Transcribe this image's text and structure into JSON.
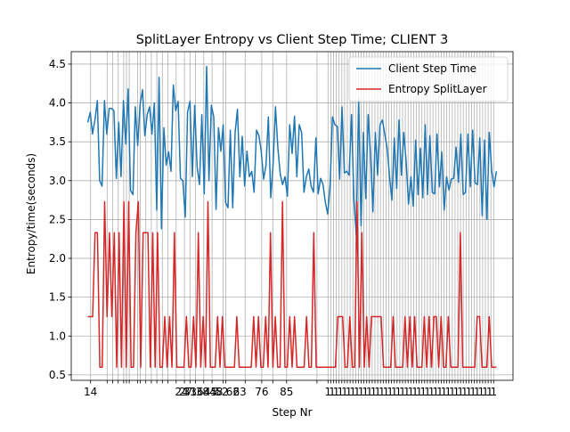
{
  "chart_data": {
    "type": "line",
    "title": "SplitLayer Entropy vs Client Step Time; CLIENT 3",
    "xlabel": "Step Nr",
    "ylabel": "Entropy/time(seconds)",
    "xlim": [
      7,
      167
    ],
    "ylim": [
      0.43,
      4.66
    ],
    "yticks": [
      0.5,
      1.0,
      1.5,
      2.0,
      2.5,
      3.0,
      3.5,
      4.0,
      4.5
    ],
    "ytick_labels": [
      "0.5",
      "1.0",
      "1.5",
      "2.0",
      "2.5",
      "3.0",
      "3.5",
      "4.0",
      "4.5"
    ],
    "grid": true,
    "legend_position": "top-right",
    "xtick_labels_visible": [
      {
        "x": 14,
        "label": "14"
      },
      {
        "x": 47,
        "label": "24"
      },
      {
        "x": 48.5,
        "label": "27"
      },
      {
        "x": 50,
        "label": "31"
      },
      {
        "x": 52.5,
        "label": "36"
      },
      {
        "x": 54.5,
        "label": "38"
      },
      {
        "x": 57.5,
        "label": "45"
      },
      {
        "x": 59.5,
        "label": "48"
      },
      {
        "x": 61.5,
        "label": "52"
      },
      {
        "x": 65.5,
        "label": "62"
      },
      {
        "x": 68,
        "label": "63"
      },
      {
        "x": 76,
        "label": "76"
      },
      {
        "x": 85,
        "label": "85"
      }
    ],
    "xtick_positions": [
      14,
      20,
      22,
      24,
      26,
      27,
      28,
      31,
      32,
      34,
      36,
      38,
      40,
      42,
      45,
      48,
      50,
      52,
      55,
      58,
      62,
      63,
      70,
      76,
      80,
      85,
      96,
      100,
      101,
      102,
      103,
      104,
      105,
      106,
      107,
      108,
      109,
      110,
      111,
      112,
      113,
      114,
      115,
      116,
      117,
      118,
      119,
      120,
      121,
      122,
      123,
      124,
      125,
      126,
      127,
      128,
      129,
      130,
      131,
      132,
      133,
      134,
      135,
      136,
      137,
      138,
      139,
      140,
      141,
      142,
      143,
      144,
      145,
      146,
      147,
      148,
      149,
      150,
      151,
      152,
      153,
      154,
      155,
      156,
      157,
      158,
      159,
      160
    ],
    "series": [
      {
        "name": "Client Step Time",
        "color": "#1f77b4",
        "values": [
          3.75,
          3.88,
          3.6,
          3.78,
          4.03,
          3.0,
          2.93,
          4.03,
          3.6,
          3.93,
          3.93,
          3.9,
          3.03,
          3.75,
          3.05,
          4.03,
          3.47,
          4.18,
          2.87,
          2.82,
          3.95,
          3.45,
          3.98,
          4.17,
          3.58,
          3.85,
          3.95,
          3.6,
          4.0,
          2.62,
          4.33,
          2.38,
          3.68,
          3.2,
          3.37,
          3.12,
          4.23,
          3.9,
          4.02,
          3.03,
          3.0,
          2.53,
          3.88,
          4.02,
          3.05,
          3.97,
          3.18,
          2.95,
          3.85,
          2.83,
          4.47,
          3.0,
          3.97,
          3.82,
          2.63,
          3.68,
          3.38,
          3.72,
          2.72,
          2.65,
          3.65,
          2.65,
          3.62,
          3.92,
          3.05,
          3.57,
          2.93,
          3.38,
          3.05,
          3.12,
          2.85,
          3.65,
          3.58,
          3.38,
          3.02,
          3.2,
          3.82,
          2.78,
          3.22,
          3.95,
          3.42,
          3.08,
          2.95,
          3.05,
          2.8,
          3.72,
          3.35,
          3.83,
          3.05,
          3.72,
          3.62,
          2.85,
          3.05,
          3.15,
          2.93,
          2.85,
          3.55,
          2.83,
          3.03,
          2.95,
          2.72,
          2.57,
          2.95,
          3.82,
          3.72,
          3.7,
          3.02,
          3.95,
          3.1,
          3.12,
          3.07,
          3.85,
          2.75,
          2.3,
          4.05,
          2.42,
          3.62,
          2.77,
          3.85,
          3.35,
          2.6,
          3.62,
          3.07,
          3.72,
          3.78,
          3.6,
          3.42,
          3.05,
          2.75,
          3.55,
          2.9,
          3.78,
          3.07,
          3.62,
          3.25,
          2.7,
          3.05,
          2.67,
          3.52,
          2.82,
          3.42,
          2.78,
          3.72,
          2.82,
          3.58,
          2.85,
          2.83,
          3.6,
          2.92,
          3.37,
          2.62,
          3.05,
          2.88,
          3.02,
          3.03,
          3.43,
          2.98,
          3.6,
          2.82,
          2.85,
          3.6,
          2.92,
          3.65,
          2.97,
          2.95,
          3.55,
          2.55,
          3.52,
          2.5,
          3.62,
          3.12,
          2.92,
          3.12
        ]
      },
      {
        "name": "Entropy SplitLayer",
        "color": "#d62728",
        "values": [
          1.25,
          1.25,
          1.25,
          2.33,
          2.33,
          0.6,
          0.6,
          2.73,
          1.25,
          2.33,
          1.25,
          2.33,
          0.6,
          2.33,
          0.6,
          2.73,
          0.6,
          2.73,
          0.6,
          0.6,
          2.33,
          2.73,
          0.6,
          2.33,
          2.33,
          2.33,
          0.6,
          2.33,
          0.6,
          2.33,
          0.6,
          0.6,
          1.25,
          0.6,
          1.25,
          0.6,
          2.33,
          0.6,
          0.6,
          0.6,
          0.6,
          1.25,
          0.6,
          0.6,
          1.25,
          0.6,
          2.33,
          0.6,
          1.25,
          0.6,
          2.73,
          0.6,
          0.6,
          0.6,
          1.25,
          0.6,
          1.25,
          0.6,
          0.6,
          0.6,
          0.6,
          0.6,
          1.25,
          0.6,
          0.6,
          0.6,
          0.6,
          0.6,
          0.6,
          1.25,
          0.6,
          1.25,
          0.6,
          0.6,
          1.25,
          0.6,
          2.33,
          0.6,
          1.25,
          0.6,
          0.6,
          2.73,
          0.6,
          0.6,
          1.25,
          0.6,
          1.25,
          0.6,
          0.6,
          0.6,
          0.6,
          1.25,
          0.6,
          0.6,
          2.33,
          0.6,
          0.6,
          0.6,
          0.6,
          0.6,
          0.6,
          0.6,
          0.6,
          0.6,
          1.25,
          1.25,
          1.25,
          0.6,
          0.6,
          1.25,
          0.6,
          0.6,
          2.73,
          0.6,
          2.33,
          0.6,
          1.25,
          0.6,
          1.25,
          1.25,
          1.25,
          1.25,
          1.25,
          0.6,
          0.6,
          0.6,
          0.6,
          1.25,
          0.6,
          0.6,
          0.6,
          0.6,
          1.25,
          0.6,
          1.25,
          0.6,
          1.25,
          0.6,
          0.6,
          0.6,
          1.25,
          0.6,
          1.25,
          0.6,
          1.25,
          1.25,
          0.6,
          1.25,
          0.6,
          0.6,
          1.25,
          0.6,
          0.6,
          0.6,
          0.6,
          2.33,
          0.6,
          0.6,
          0.6,
          0.6,
          0.6,
          0.6,
          1.25,
          1.25,
          0.6,
          0.6,
          0.6,
          1.25,
          0.6,
          0.6,
          0.6
        ]
      }
    ],
    "x_start": 13,
    "x_end": 161
  }
}
